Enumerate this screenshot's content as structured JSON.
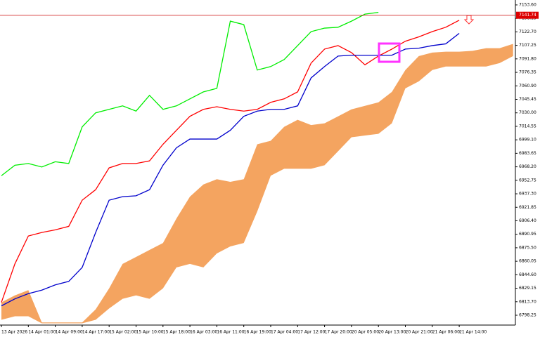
{
  "chart_data": {
    "type": "line",
    "categories": [
      "13 Apr 2026",
      null,
      "14 Apr 01:00",
      null,
      "14 Apr 09:00",
      null,
      "14 Apr 17:00",
      null,
      "15 Apr 02:00",
      null,
      "15 Apr 10:00",
      null,
      "15 Apr 18:00",
      null,
      "16 Apr 03:00",
      null,
      "16 Apr 11:00",
      null,
      "16 Apr 19:00",
      null,
      "17 Apr 04:00",
      null,
      "17 Apr 12:00",
      null,
      "17 Apr 20:00",
      null,
      "20 Apr 05:00",
      null,
      "20 Apr 13:00",
      null,
      "20 Apr 21:00",
      null,
      "21 Apr 06:00",
      null,
      "21 Apr 14:00",
      null,
      null,
      null,
      null
    ],
    "series": [
      {
        "color": "#ff0000",
        "values": [
          6813,
          6857,
          6889,
          6893,
          6896,
          6900,
          6930,
          6942,
          6967,
          6972,
          6972,
          6975,
          6994,
          7010,
          7026,
          7034,
          7037,
          7034,
          7032,
          7034,
          7042,
          7046,
          7054,
          7087,
          7103,
          7107,
          7099,
          7085,
          7095,
          7103,
          7112,
          7117,
          7123,
          7128,
          7136,
          null,
          null,
          null,
          null
        ]
      },
      {
        "color": "#0000cc",
        "values": [
          6809,
          6817,
          6823,
          6827,
          6833,
          6837,
          6853,
          6893,
          6930,
          6934,
          6935,
          6942,
          6970,
          6990,
          7000,
          7000,
          7000,
          7010,
          7026,
          7032,
          7034,
          7034,
          7038,
          7070,
          7083,
          7095,
          7096,
          7096,
          7096,
          7096,
          7103,
          7104,
          7107,
          7109,
          7121,
          null,
          null,
          null,
          null
        ]
      },
      {
        "color": "#00ee00",
        "values": [
          6958,
          6970,
          6972,
          6968,
          6974,
          6972,
          7014,
          7030,
          7034,
          7038,
          7032,
          7050,
          7034,
          7038,
          7046,
          7054,
          7058,
          7135,
          7131,
          7079,
          7083,
          7091,
          7107,
          7123,
          7127,
          7128,
          7135,
          7143,
          7145,
          null,
          null,
          null,
          null,
          null,
          null,
          null,
          null,
          null,
          null
        ]
      }
    ],
    "cloud": {
      "color": "#f4a460",
      "upper": [
        6813,
        6821,
        6827,
        6790,
        6790,
        6790,
        6790,
        6805,
        6829,
        6857,
        6865,
        6873,
        6881,
        6909,
        6934,
        6948,
        6954,
        6951,
        6954,
        6994,
        6998,
        7014,
        7022,
        7016,
        7018,
        7026,
        7034,
        7038,
        7042,
        7054,
        7079,
        7095,
        7099,
        7100,
        7100,
        7101,
        7104,
        7104,
        7109
      ],
      "lower": [
        6793,
        6797,
        6797,
        6789,
        6789,
        6789,
        6789,
        6793,
        6806,
        6817,
        6821,
        6817,
        6829,
        6853,
        6857,
        6853,
        6869,
        6877,
        6881,
        6917,
        6958,
        6966,
        6966,
        6966,
        6970,
        6986,
        7002,
        7004,
        7006,
        7018,
        7058,
        7066,
        7079,
        7083,
        7083,
        7083,
        7083,
        7087,
        7095
      ]
    },
    "current_price": 7141.74,
    "ylim": [
      6787,
      7159.2
    ],
    "yticks": [
      {
        "value": 7153.6,
        "label": "7153.60"
      },
      {
        "value": 7138.15,
        "label": "7138.15"
      },
      {
        "value": 7122.7,
        "label": "7122.70"
      },
      {
        "value": 7107.25,
        "label": "7107.25"
      },
      {
        "value": 7091.8,
        "label": "7091.80"
      },
      {
        "value": 7076.35,
        "label": "7076.35"
      },
      {
        "value": 7060.9,
        "label": "7060.90"
      },
      {
        "value": 7045.45,
        "label": "7045.45"
      },
      {
        "value": 7030,
        "label": "7030.00"
      },
      {
        "value": 7014.55,
        "label": "7014.55"
      },
      {
        "value": 6999.1,
        "label": "6999.10"
      },
      {
        "value": 6983.65,
        "label": "6983.65"
      },
      {
        "value": 6968.2,
        "label": "6968.20"
      },
      {
        "value": 6952.75,
        "label": "6952.75"
      },
      {
        "value": 6937.3,
        "label": "6937.30"
      },
      {
        "value": 6921.85,
        "label": "6921.85"
      },
      {
        "value": 6906.4,
        "label": "6906.40"
      },
      {
        "value": 6890.95,
        "label": "6890.95"
      },
      {
        "value": 6875.5,
        "label": "6875.50"
      },
      {
        "value": 6860.05,
        "label": "6860.05"
      },
      {
        "value": 6844.6,
        "label": "6844.60"
      },
      {
        "value": 6829.15,
        "label": "6829.15"
      },
      {
        "value": 6813.7,
        "label": "6813.70"
      },
      {
        "value": 6798.25,
        "label": "6798.25"
      }
    ]
  }
}
